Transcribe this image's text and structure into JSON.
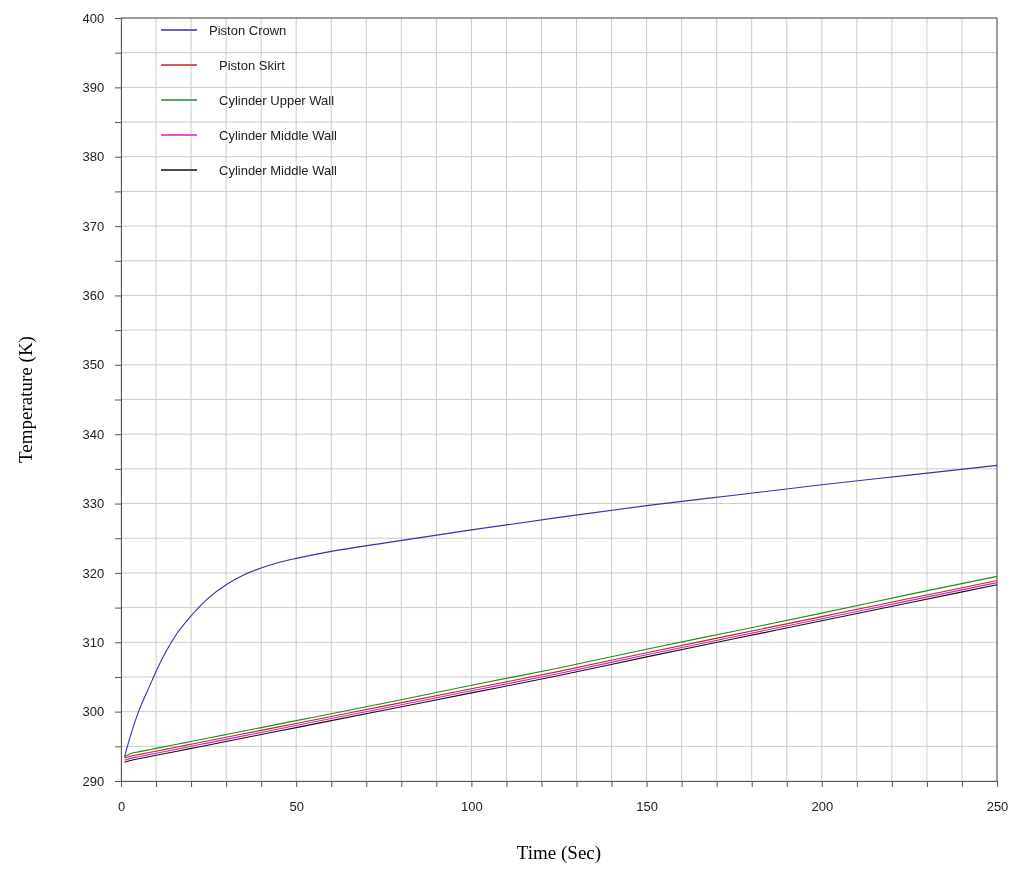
{
  "chart_data": {
    "type": "line",
    "xlabel": "Time (Sec)",
    "ylabel": "Temperature (K)",
    "xlim": [
      0,
      250
    ],
    "ylim": [
      290,
      400
    ],
    "xticks": [
      0,
      {
        "value": 10,
        "label": null
      },
      {
        "value": 20,
        "label": null
      },
      {
        "value": 30,
        "label": null
      },
      {
        "value": 40,
        "label": null
      },
      50,
      {
        "value": 60,
        "label": null
      },
      {
        "value": 70,
        "label": null
      },
      {
        "value": 80,
        "label": null
      },
      {
        "value": 90,
        "label": null
      },
      100,
      {
        "value": 110,
        "label": null
      },
      {
        "value": 120,
        "label": null
      },
      {
        "value": 130,
        "label": null
      },
      {
        "value": 140,
        "label": null
      },
      150,
      {
        "value": 160,
        "label": null
      },
      {
        "value": 170,
        "label": null
      },
      {
        "value": 180,
        "label": null
      },
      {
        "value": 190,
        "label": null
      },
      200,
      {
        "value": 210,
        "label": null
      },
      {
        "value": 220,
        "label": null
      },
      {
        "value": 230,
        "label": null
      },
      {
        "value": 240,
        "label": null
      },
      250
    ],
    "yticks": [
      290,
      {
        "value": 295,
        "label": null
      },
      300,
      {
        "value": 305,
        "label": null
      },
      310,
      {
        "value": 315,
        "label": null
      },
      320,
      {
        "value": 325,
        "label": null
      },
      330,
      {
        "value": 335,
        "label": null
      },
      340,
      {
        "value": 345,
        "label": null
      },
      350,
      {
        "value": 355,
        "label": null
      },
      360,
      {
        "value": 365,
        "label": null
      },
      370,
      {
        "value": 375,
        "label": null
      },
      380,
      {
        "value": 385,
        "label": null
      },
      390,
      {
        "value": 395,
        "label": null
      },
      400
    ],
    "grid": true,
    "legend": "top left",
    "line_style": "solid",
    "marker": "none",
    "x": [
      1,
      3,
      5,
      8,
      10,
      13,
      16,
      20,
      25,
      30,
      35,
      40,
      45,
      50,
      60,
      75,
      100,
      125,
      150,
      175,
      200,
      225,
      250
    ],
    "series": [
      {
        "name": "Piston Crown",
        "color": "#3333aa",
        "values": [
          293.5,
          297,
          300,
          303.5,
          305.8,
          308.8,
          311.3,
          313.8,
          316.4,
          318.3,
          319.7,
          320.7,
          321.5,
          322.1,
          323.1,
          324.3,
          326.2,
          328,
          329.7,
          331.2,
          332.7,
          334.1,
          335.5
        ]
      },
      {
        "name": "Piston Skirt",
        "color": "#cc2222",
        "values": [
          293.3,
          293.6,
          293.8,
          294.1,
          294.3,
          294.6,
          294.9,
          295.3,
          295.8,
          296.3,
          296.8,
          297.3,
          297.8,
          298.3,
          299.3,
          300.8,
          303.3,
          305.8,
          308.5,
          311.1,
          313.7,
          316.3,
          318.9
        ]
      },
      {
        "name": "Cylinder Upper Wall",
        "color": "#228822",
        "values": [
          293.5,
          294,
          294.2,
          294.5,
          294.7,
          295,
          295.3,
          295.7,
          296.2,
          296.7,
          297.2,
          297.7,
          298.2,
          298.7,
          299.7,
          301.2,
          303.8,
          306.3,
          309,
          311.6,
          314.2,
          316.9,
          319.5
        ]
      },
      {
        "name": "Cylinder Middle Wall",
        "color": "#cc22cc",
        "values": [
          293,
          293.3,
          293.5,
          293.8,
          294,
          294.3,
          294.6,
          295,
          295.5,
          296,
          296.5,
          297,
          297.5,
          298,
          299,
          300.5,
          303,
          305.5,
          308.2,
          310.8,
          313.4,
          316,
          318.6
        ]
      },
      {
        "name": "Cylinder Middle Wall",
        "color": "#111111",
        "values": [
          292.7,
          293,
          293.2,
          293.5,
          293.7,
          294,
          294.3,
          294.7,
          295.2,
          295.7,
          296.2,
          296.7,
          297.2,
          297.7,
          298.7,
          300.2,
          302.7,
          305.2,
          307.9,
          310.5,
          313.1,
          315.7,
          318.3
        ]
      }
    ]
  }
}
